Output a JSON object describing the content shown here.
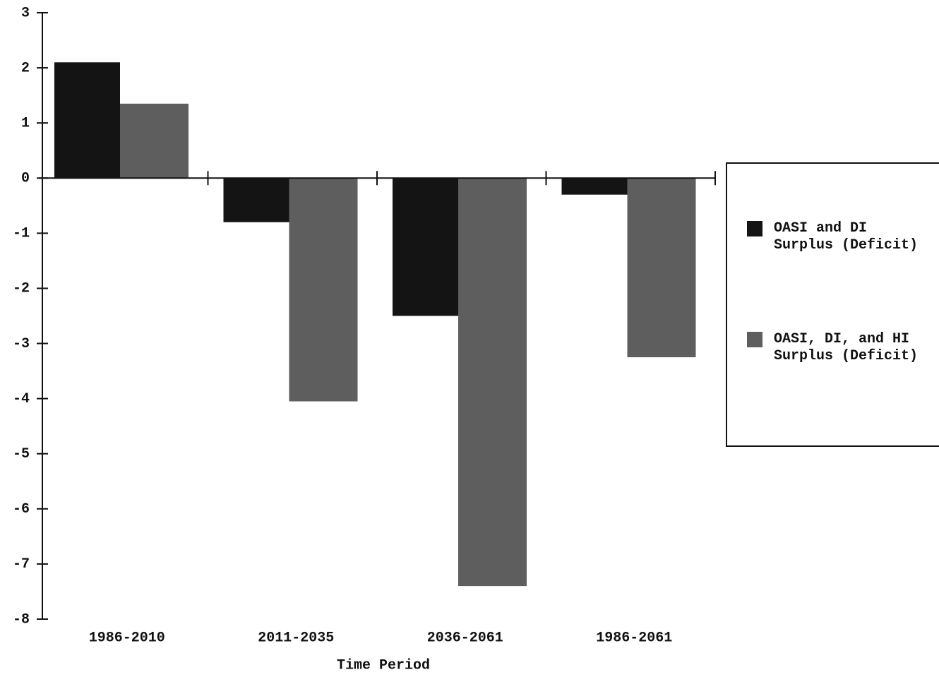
{
  "chart_data": {
    "type": "bar",
    "x_label": "Time Period",
    "categories": [
      "1986-2010",
      "2011-2035",
      "2036-2061",
      "1986-2061"
    ],
    "series": [
      {
        "name": "OASI and DI Surplus (Deficit)",
        "color": "#141414",
        "values": [
          2.1,
          -0.8,
          -2.5,
          -0.3
        ]
      },
      {
        "name": "OASI, DI, and HI Surplus (Deficit)",
        "color": "#5e5e5e",
        "values": [
          1.35,
          -4.05,
          -7.4,
          -3.25
        ]
      }
    ],
    "ylim": [
      -8,
      3
    ],
    "yticks": [
      -8,
      -7,
      -6,
      -5,
      -4,
      -3,
      -2,
      -1,
      0,
      1,
      2,
      3
    ],
    "legend": "right"
  }
}
